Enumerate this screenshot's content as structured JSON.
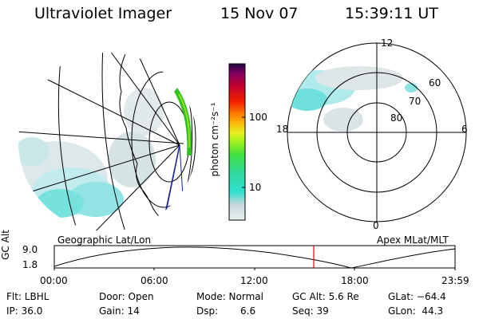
{
  "header": {
    "instrument": "Ultraviolet Imager",
    "date": "15 Nov 07",
    "time": "15:39:11 UT"
  },
  "colorbar": {
    "unit_label": "photon cm⁻²s⁻¹",
    "ticks": [
      "100",
      "10"
    ],
    "gradient_colors": [
      "#e8eef0",
      "#c8d8dc",
      "#30e0d0",
      "#30d8a0",
      "#40e040",
      "#a0f020",
      "#e8f020",
      "#ff9000",
      "#f02000",
      "#c00030",
      "#800060",
      "#200040"
    ]
  },
  "left_panel": {
    "caption": "Geographic Lat/Lon"
  },
  "right_panel": {
    "caption": "Apex MLat/MLT",
    "mlt_labels": {
      "top": "12",
      "bottom": "0",
      "left": "18",
      "right": "6"
    },
    "lat_labels": [
      "60",
      "70",
      "80"
    ]
  },
  "altitude_plot": {
    "ylabel": "GC Alt",
    "yticks": [
      "9.0",
      "1.8"
    ],
    "xticks": [
      "00:00",
      "06:00",
      "12:00",
      "18:00",
      "23:59"
    ],
    "current_time_marker": "15:39"
  },
  "footer": {
    "flt": "Flt: LBHL",
    "ip": "IP: 36.0",
    "door": "Door: Open",
    "gain": "Gain: 14",
    "mode": "Mode: Normal",
    "dsp_label": "Dsp:",
    "dsp_value": "6.6",
    "gcalt": "GC Alt: 5.6 Re",
    "seq": "Seq: 39",
    "glat": "GLat: −64.4",
    "glon": "GLon:  44.3"
  }
}
